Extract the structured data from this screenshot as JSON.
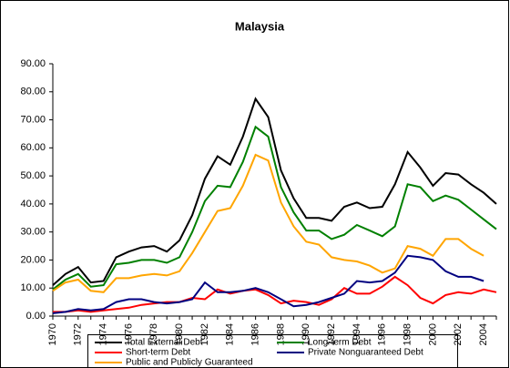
{
  "chart_data": {
    "type": "line",
    "title": "Malaysia",
    "categories": [
      "1970",
      null,
      "1972",
      null,
      "1974",
      null,
      "1976",
      null,
      "1978",
      null,
      "1980",
      null,
      "1982",
      null,
      "1984",
      null,
      "1986",
      null,
      "1988",
      null,
      "1990",
      null,
      "1992",
      null,
      "1994",
      null,
      "1996",
      null,
      "1998",
      null,
      "2000",
      null,
      "2002",
      null,
      "2004",
      null
    ],
    "ylim": [
      0,
      90
    ],
    "yticks": [
      {
        "value": 0,
        "label": "0.00"
      },
      {
        "value": 10,
        "label": "10.00"
      },
      {
        "value": 20,
        "label": "20.00"
      },
      {
        "value": 30,
        "label": "30.00"
      },
      {
        "value": 40,
        "label": "40.00"
      },
      {
        "value": 50,
        "label": "50.00"
      },
      {
        "value": 60,
        "label": "60.00"
      },
      {
        "value": 70,
        "label": "70.00"
      },
      {
        "value": 80,
        "label": "80.00"
      },
      {
        "value": 90,
        "label": "90.00"
      }
    ],
    "grid": false,
    "series": [
      {
        "name": "Total External Debt",
        "color": "#000000",
        "values": [
          11,
          15,
          17.5,
          12,
          12.5,
          21,
          23,
          24.5,
          25,
          23,
          27,
          36,
          49,
          57,
          54,
          64,
          77.5,
          71,
          52,
          42,
          35,
          35,
          34,
          39,
          40.5,
          38.5,
          39,
          47,
          58.5,
          53,
          46.5,
          51,
          50.5,
          47,
          44,
          40
        ]
      },
      {
        "name": "Long-term Debt",
        "color": "#008000",
        "values": [
          9.5,
          13,
          15,
          10.5,
          11,
          18.5,
          19,
          20,
          20,
          19,
          21,
          30,
          41,
          46.5,
          46,
          55,
          67.5,
          64,
          46,
          37,
          30.5,
          30.5,
          27.5,
          29,
          32.5,
          30.5,
          28.5,
          32,
          47,
          46,
          41,
          43,
          41.5,
          38,
          34.5,
          31
        ]
      },
      {
        "name": "Short-term Debt",
        "color": "#ff0000",
        "values": [
          1.5,
          1.5,
          2,
          1.5,
          2,
          2.5,
          3,
          4,
          4.5,
          5,
          5,
          6.5,
          6,
          9.5,
          8,
          9,
          9.5,
          7.5,
          4.5,
          5.5,
          5,
          4,
          6,
          10,
          8,
          8,
          10.5,
          14,
          11,
          6.5,
          4.5,
          7.5,
          8.5,
          8,
          9.5,
          8.5
        ]
      },
      {
        "name": "Private Nonguaranteed Debt",
        "color": "#000080",
        "values": [
          1,
          1.5,
          2.5,
          2,
          2.5,
          5,
          6,
          6,
          5,
          4.5,
          5,
          6,
          12,
          8.5,
          8.5,
          9,
          10,
          8.5,
          6,
          3.5,
          4,
          5,
          6.5,
          8,
          12.5,
          12,
          12.5,
          15.5,
          21.5,
          21,
          20,
          16,
          14,
          14,
          12.5,
          null
        ]
      },
      {
        "name": "Public and Publicly Guaranteed",
        "color": "#ffa500",
        "values": [
          9,
          12,
          13,
          9,
          8.5,
          13.5,
          13.5,
          14.5,
          15,
          14.5,
          16,
          22.5,
          30,
          37.5,
          38.5,
          46.5,
          57.5,
          55.5,
          40.5,
          32,
          26.5,
          25.5,
          21,
          20,
          19.5,
          18,
          15.5,
          17,
          25,
          24,
          21.5,
          27.5,
          27.5,
          24,
          21.5,
          null
        ]
      }
    ]
  }
}
